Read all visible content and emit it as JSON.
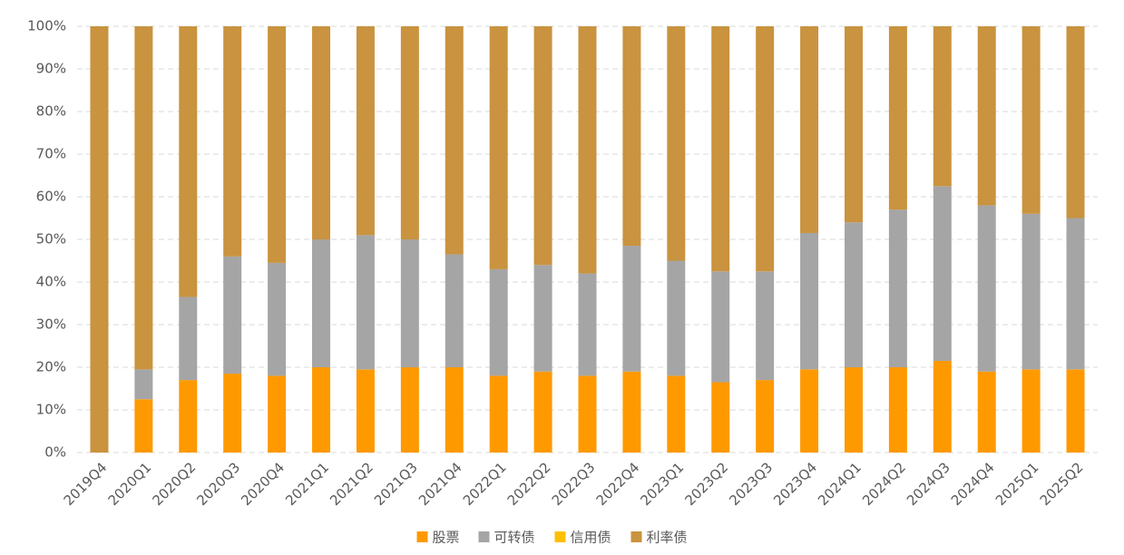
{
  "chart_data": {
    "type": "stacked-bar",
    "categories": [
      "2019Q4",
      "2020Q1",
      "2020Q2",
      "2020Q3",
      "2020Q4",
      "2021Q1",
      "2021Q2",
      "2021Q3",
      "2021Q4",
      "2022Q1",
      "2022Q2",
      "2022Q3",
      "2022Q4",
      "2023Q1",
      "2023Q2",
      "2023Q3",
      "2023Q4",
      "2024Q1",
      "2024Q2",
      "2024Q3",
      "2024Q4",
      "2025Q1",
      "2025Q2"
    ],
    "series": [
      {
        "name": "股票",
        "color": "#ff9900",
        "values": [
          0,
          12.5,
          17,
          18.5,
          18,
          20,
          19.5,
          20,
          20,
          18,
          19,
          18,
          19,
          18,
          16.5,
          17,
          19.5,
          20,
          20,
          21.5,
          19,
          19.5,
          19.5
        ]
      },
      {
        "name": "可转债",
        "color": "#a5a5a5",
        "values": [
          0,
          7,
          19.5,
          27.5,
          26.5,
          30,
          31.5,
          30,
          26.5,
          25,
          25,
          24,
          29.5,
          27,
          26,
          25.5,
          32,
          34,
          37,
          41,
          39,
          36.5,
          35.5
        ]
      },
      {
        "name": "信用债",
        "color": "#ffc000",
        "values": [
          0,
          0,
          0,
          0,
          0,
          0,
          0,
          0,
          0,
          0,
          0,
          0,
          0,
          0,
          0,
          0,
          0,
          0,
          0,
          0,
          0,
          0,
          0
        ]
      },
      {
        "name": "利率债",
        "color": "#c9933f",
        "values": [
          100,
          80.5,
          63.5,
          54,
          55.5,
          50,
          49,
          50,
          53.5,
          57,
          56,
          58,
          51.5,
          55,
          57.5,
          57.5,
          48.5,
          46,
          43,
          37.5,
          42,
          44,
          45
        ]
      }
    ],
    "ylim": [
      0,
      100
    ],
    "yticks": [
      {
        "value": 0,
        "label": "0%"
      },
      {
        "value": 10,
        "label": "10%"
      },
      {
        "value": 20,
        "label": "20%"
      },
      {
        "value": 30,
        "label": "30%"
      },
      {
        "value": 40,
        "label": "40%"
      },
      {
        "value": 50,
        "label": "50%"
      },
      {
        "value": 60,
        "label": "60%"
      },
      {
        "value": 70,
        "label": "70%"
      },
      {
        "value": 80,
        "label": "80%"
      },
      {
        "value": 90,
        "label": "90%"
      },
      {
        "value": 100,
        "label": "100%"
      }
    ],
    "grid": true
  }
}
